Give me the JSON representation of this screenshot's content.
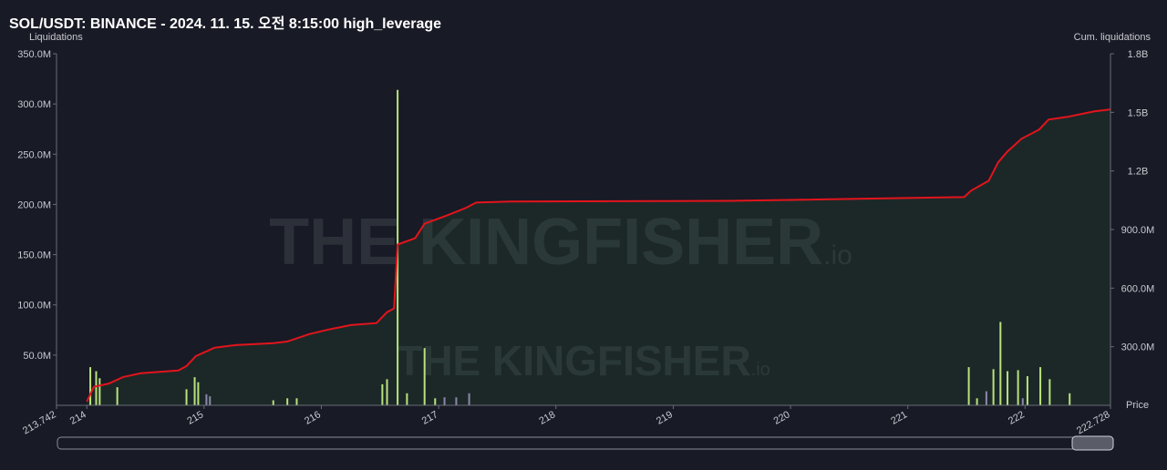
{
  "chart_data": {
    "type": "bar",
    "title": "SOL/USDT: BINANCE - 2024. 11. 15. 오전 8:15:00 high_leverage",
    "y_label": "Liquidations",
    "y2_label": "Cum. liquidations",
    "x_label": "Price",
    "watermark": {
      "main": "THE KINGFISHER",
      "suffix": ".io"
    },
    "xlim": [
      213.742,
      222.728
    ],
    "xticks": [
      213.742,
      214,
      215,
      216,
      217,
      218,
      219,
      220,
      221,
      222,
      222.728
    ],
    "ylim": [
      0,
      350000000
    ],
    "yticks": [
      {
        "value": 50000000,
        "label": "50.0M"
      },
      {
        "value": 100000000,
        "label": "100.0M"
      },
      {
        "value": 150000000,
        "label": "150.0M"
      },
      {
        "value": 200000000,
        "label": "200.0M"
      },
      {
        "value": 250000000,
        "label": "250.0M"
      },
      {
        "value": 300000000,
        "label": "300.0M"
      },
      {
        "value": 350000000,
        "label": "350.0M"
      }
    ],
    "y2lim": [
      0,
      1800000000
    ],
    "y2ticks": [
      {
        "value": 300000000,
        "label": "300.0M"
      },
      {
        "value": 600000000,
        "label": "600.0M"
      },
      {
        "value": 900000000,
        "label": "900.0M"
      },
      {
        "value": 1200000000,
        "label": "1.2B"
      },
      {
        "value": 1500000000,
        "label": "1.5B"
      },
      {
        "value": 1800000000,
        "label": "1.8B"
      }
    ],
    "series": [
      {
        "type": "bar",
        "color": "#b9e27c",
        "x": [
          214.03,
          214.08,
          214.11,
          214.26,
          214.85,
          214.92,
          214.95,
          215.59,
          215.71,
          215.79,
          216.52,
          216.56,
          216.65,
          216.73,
          216.88,
          216.97,
          221.52,
          221.59,
          221.73,
          221.79,
          221.85,
          221.94,
          222.02,
          222.13,
          222.21,
          222.38
        ],
        "values": [
          38000000,
          34000000,
          27000000,
          18000000,
          16000000,
          28000000,
          23000000,
          5000000,
          7000000,
          7000000,
          21000000,
          26000000,
          314000000,
          12000000,
          57000000,
          7000000,
          38000000,
          7000000,
          36000000,
          83000000,
          34000000,
          35000000,
          29000000,
          38000000,
          26000000,
          12000000
        ]
      },
      {
        "type": "bar",
        "color": "#8c87ab",
        "x": [
          215.02,
          215.05,
          217.05,
          217.15,
          217.26,
          221.67,
          221.98
        ],
        "values": [
          11000000,
          9000000,
          8000000,
          8000000,
          12000000,
          14000000,
          7000000
        ]
      },
      {
        "type": "line",
        "axis": "y2",
        "color": "#e3141c",
        "x": [
          214.0,
          214.06,
          214.19,
          214.31,
          214.46,
          214.66,
          214.78,
          214.85,
          214.93,
          215.09,
          215.28,
          215.59,
          215.71,
          215.9,
          216.06,
          216.25,
          216.47,
          216.56,
          216.62,
          216.65,
          216.8,
          216.88,
          217.07,
          217.23,
          217.32,
          217.61,
          219.48,
          221.48,
          221.54,
          221.69,
          221.77,
          221.85,
          221.97,
          222.12,
          222.2,
          222.36,
          222.59,
          222.728
        ],
        "values": [
          19000000,
          94000000,
          112000000,
          145000000,
          164000000,
          173000000,
          178000000,
          201000000,
          252000000,
          295000000,
          309000000,
          318000000,
          327000000,
          365000000,
          388000000,
          411000000,
          421000000,
          477000000,
          496000000,
          823000000,
          856000000,
          930000000,
          972000000,
          1010000000,
          1038000000,
          1043000000,
          1047000000,
          1066000000,
          1099000000,
          1150000000,
          1244000000,
          1300000000,
          1365000000,
          1412000000,
          1463000000,
          1477000000,
          1505000000,
          1515000000
        ]
      }
    ]
  }
}
